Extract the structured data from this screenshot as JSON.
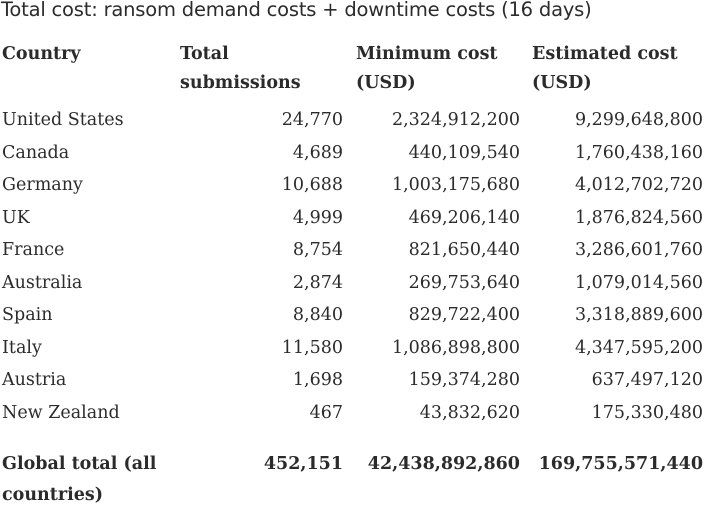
{
  "title": "Total cost: ransom demand costs +  downtime costs (16 days)",
  "columns": {
    "country": "Country",
    "total_line1": "Total",
    "total_line2": "submissions",
    "min_line1": "Minimum cost",
    "min_line2": "(USD)",
    "est_line1": "Estimated cost",
    "est_line2": "(USD)"
  },
  "rows": [
    {
      "country": "United States",
      "total": "24,770",
      "min": "2,324,912,200",
      "est": "9,299,648,800"
    },
    {
      "country": "Canada",
      "total": "4,689",
      "min": "440,109,540",
      "est": "1,760,438,160"
    },
    {
      "country": "Germany",
      "total": "10,688",
      "min": "1,003,175,680",
      "est": "4,012,702,720"
    },
    {
      "country": "UK",
      "total": "4,999",
      "min": "469,206,140",
      "est": "1,876,824,560"
    },
    {
      "country": "France",
      "total": "8,754",
      "min": "821,650,440",
      "est": "3,286,601,760"
    },
    {
      "country": "Australia",
      "total": "2,874",
      "min": "269,753,640",
      "est": "1,079,014,560"
    },
    {
      "country": "Spain",
      "total": "8,840",
      "min": "829,722,400",
      "est": "3,318,889,600"
    },
    {
      "country": "Italy",
      "total": "11,580",
      "min": "1,086,898,800",
      "est": "4,347,595,200"
    },
    {
      "country": "Austria",
      "total": "1,698",
      "min": "159,374,280",
      "est": "637,497,120"
    },
    {
      "country": "New Zealand",
      "total": "467",
      "min": "43,832,620",
      "est": "175,330,480"
    }
  ],
  "global": {
    "label_line1": "Global total (all",
    "label_line2": "countries)",
    "total": "452,151",
    "min": "42,438,892,860",
    "est": "169,755,571,440"
  }
}
